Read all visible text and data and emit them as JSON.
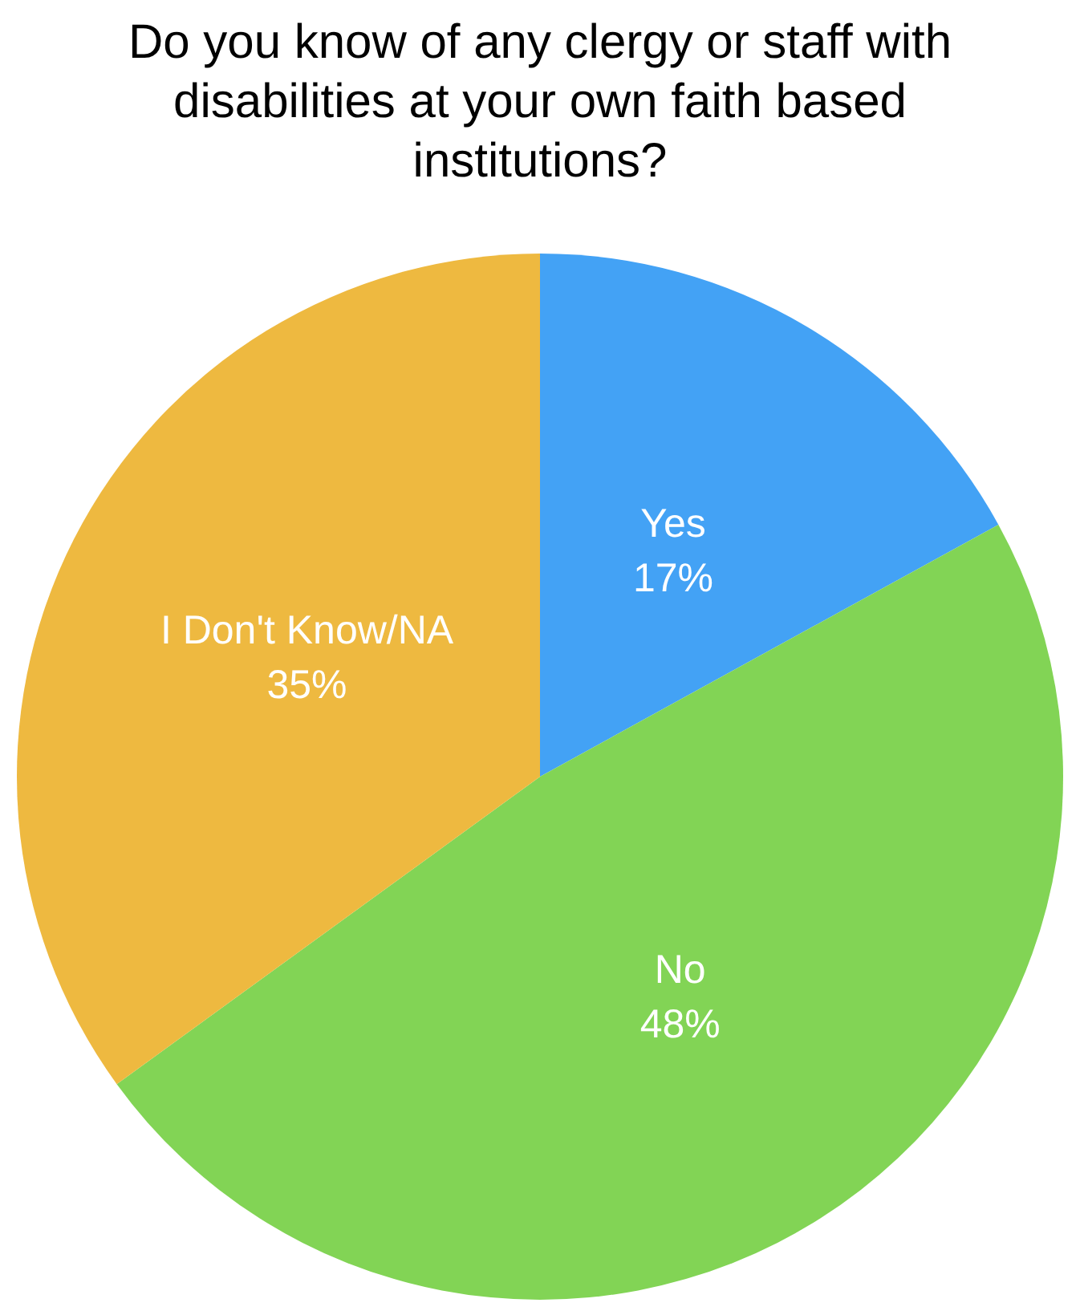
{
  "chart_data": {
    "type": "pie",
    "title": "Do you know of any clergy or staff with disabilities at your own faith based institutions?",
    "categories": [
      "Yes",
      "No",
      "I Don't Know/NA"
    ],
    "values": [
      17,
      48,
      35
    ],
    "value_labels": [
      "17%",
      "48%",
      "35%"
    ],
    "colors": [
      "#43a2f5",
      "#82d455",
      "#eeb940"
    ]
  }
}
